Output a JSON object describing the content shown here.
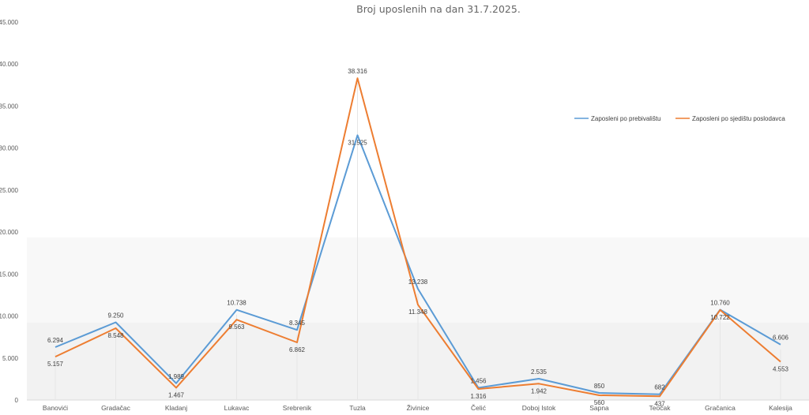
{
  "chart_data": {
    "type": "line",
    "title": "Broj uposlenih na dan 31.7.2025.",
    "xlabel": "",
    "ylabel": "",
    "ylim": [
      0,
      45000
    ],
    "ytick_labels": [
      "0",
      "5.000",
      "10.000",
      "15.000",
      "20.000",
      "25.000",
      "30.000",
      "35.000",
      "40.000",
      "45.000"
    ],
    "categories": [
      "Banovići",
      "Gradačac",
      "Kladanj",
      "Lukavac",
      "Srebrenik",
      "Tuzla",
      "Živinice",
      "Čelić",
      "Doboj Istok",
      "Sapna",
      "Teočak",
      "Gračanica",
      "Kalesija"
    ],
    "series": [
      {
        "name": "Zaposleni po prebivalištu",
        "color": "#5B9BD5",
        "values": [
          6294,
          9250,
          1989,
          10738,
          8345,
          31525,
          13238,
          1456,
          2535,
          850,
          682,
          10760,
          6606
        ],
        "labels": [
          "6.294",
          "9.250",
          "1.989",
          "10.738",
          "8.345",
          "31.525",
          "13.238",
          "1.456",
          "2.535",
          "850",
          "682",
          "10.760",
          "6.606"
        ]
      },
      {
        "name": "Zaposleni po sjedištu poslodavca",
        "color": "#ED7D31",
        "values": [
          5157,
          8548,
          1467,
          9563,
          6862,
          38316,
          11348,
          1316,
          1942,
          560,
          437,
          10722,
          4553
        ],
        "labels": [
          "5.157",
          "8.548",
          "1.467",
          "9.563",
          "6.862",
          "38.316",
          "11.348",
          "1.316",
          "1.942",
          "560",
          "437",
          "10.722",
          "4.553"
        ]
      }
    ],
    "legend_position": "right",
    "grid": false
  }
}
